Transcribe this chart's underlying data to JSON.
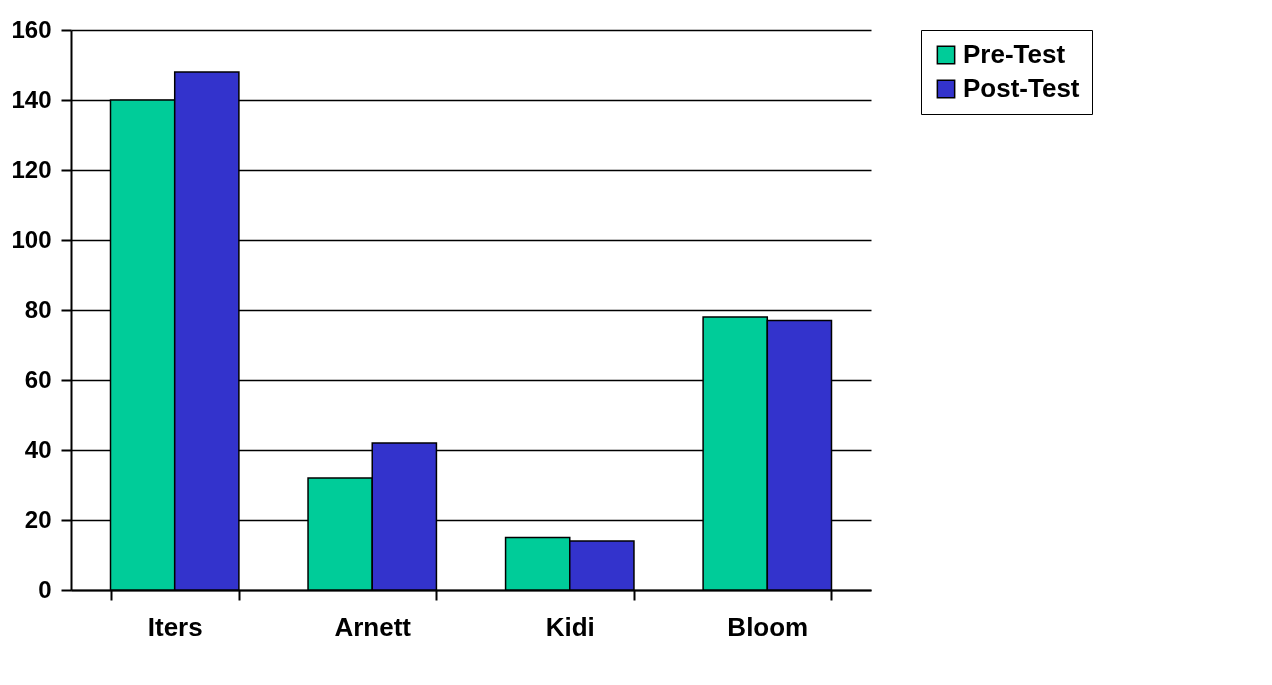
{
  "chart_data": {
    "type": "bar",
    "categories": [
      "Iters",
      "Arnett",
      "Kidi",
      "Bloom"
    ],
    "series": [
      {
        "name": "Pre-Test",
        "color": "#00cc99",
        "values": [
          140,
          32,
          15,
          78
        ]
      },
      {
        "name": "Post-Test",
        "color": "#3333cc",
        "values": [
          148,
          42,
          14,
          77
        ]
      }
    ],
    "ylim": [
      0,
      160
    ],
    "yticks": [
      0,
      20,
      40,
      60,
      80,
      100,
      120,
      140,
      160
    ],
    "grid": "y",
    "legend": "right"
  }
}
